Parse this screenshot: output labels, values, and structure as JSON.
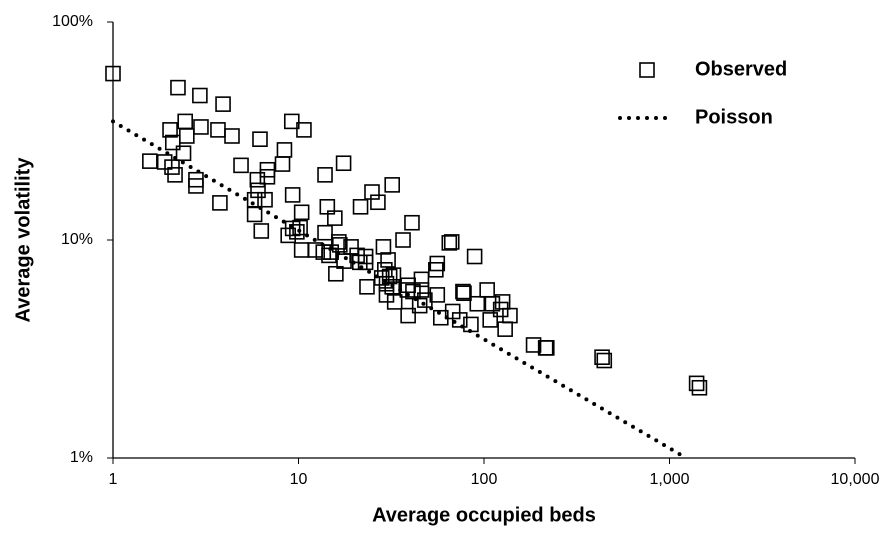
{
  "chart_data": {
    "type": "scatter",
    "x_label": "Average occupied beds",
    "y_label": "Average volatility",
    "xlim": [
      1,
      10000
    ],
    "ylim": [
      1,
      100
    ],
    "x_log": true,
    "y_log": true,
    "xticks": [
      1,
      10,
      100,
      {
        "value": 1000,
        "label": "1,000"
      },
      {
        "value": 10000,
        "label": "10,000"
      }
    ],
    "yticks": [
      {
        "value": 1,
        "label": "1%"
      },
      {
        "value": 10,
        "label": "10%"
      },
      {
        "value": 100,
        "label": "100%"
      }
    ],
    "legend": "top-right",
    "series": [
      {
        "name": "Observed",
        "color": "#000000",
        "marker": "square",
        "x": [
          1,
          2.24,
          2.94,
          3.92,
          2.45,
          2.98,
          3.68,
          4.38,
          6.2,
          2.03,
          2.5,
          2.1,
          2.4,
          9.2,
          10.7,
          1.58,
          1.9,
          2.08,
          2.16,
          2.8,
          2.8,
          3.77,
          4.9,
          6,
          6.8,
          6.8,
          6.05,
          5.8,
          5.8,
          6.3,
          6.6,
          8.2,
          8.4,
          9.3,
          10.4,
          10.2,
          9.8,
          8.8,
          9.3,
          10.4,
          12.3,
          13.6,
          13.9,
          13.9,
          14.3,
          15,
          14.6,
          15.7,
          15.9,
          16.7,
          16.5,
          17.5,
          17.6,
          19.2,
          20.7,
          21.4,
          21.6,
          23,
          23,
          23.4,
          24.9,
          26.8,
          28.1,
          29.8,
          29.8,
          28.7,
          29.2,
          30.4,
          31,
          32,
          32.5,
          32,
          33,
          36.6,
          39,
          38.6,
          39,
          40.9,
          41.4,
          46,
          46,
          45,
          48,
          55,
          56,
          56,
          58.5,
          65,
          67,
          67.8,
          74,
          77,
          78,
          85,
          89,
          92,
          104,
          108,
          111,
          123,
          126,
          130,
          138,
          185,
          215,
          218,
          433,
          445,
          1400,
          1450
        ],
        "values": [
          58,
          50,
          46,
          42,
          35,
          33,
          32,
          30,
          29,
          32,
          30,
          28,
          25,
          35,
          32,
          23,
          22.8,
          21.6,
          19.9,
          18.9,
          17.7,
          14.8,
          22,
          18.9,
          21,
          19.5,
          16.9,
          15.3,
          13.1,
          11,
          15.3,
          22.3,
          25.9,
          16.1,
          13.4,
          11.4,
          10.9,
          10.5,
          11.3,
          9,
          9,
          8.8,
          10.8,
          19.9,
          14.2,
          8.8,
          8.5,
          12.6,
          7,
          9.5,
          9.8,
          22.5,
          8,
          9.3,
          8.5,
          7.9,
          14.2,
          8.4,
          7.9,
          6.1,
          16.6,
          14.9,
          6.7,
          6.3,
          5.6,
          9.3,
          7.3,
          8.1,
          6.8,
          17.9,
          6.9,
          6.1,
          5.2,
          10,
          6.2,
          5.9,
          4.5,
          12,
          5.8,
          6.6,
          5.9,
          5,
          5.3,
          7.3,
          7.8,
          5.6,
          4.4,
          9.7,
          9.8,
          4.7,
          4.3,
          5.8,
          5.7,
          4.1,
          8.4,
          5.1,
          5.9,
          4.3,
          5.1,
          4.8,
          5.2,
          3.9,
          4.5,
          3.3,
          3.2,
          3.2,
          2.9,
          2.8,
          2.2,
          2.1
        ]
      },
      {
        "name": "Poisson",
        "color": "#000000",
        "line_style": "dotted",
        "x": [
          1,
          1230
        ],
        "values": [
          35,
          1
        ]
      }
    ]
  }
}
